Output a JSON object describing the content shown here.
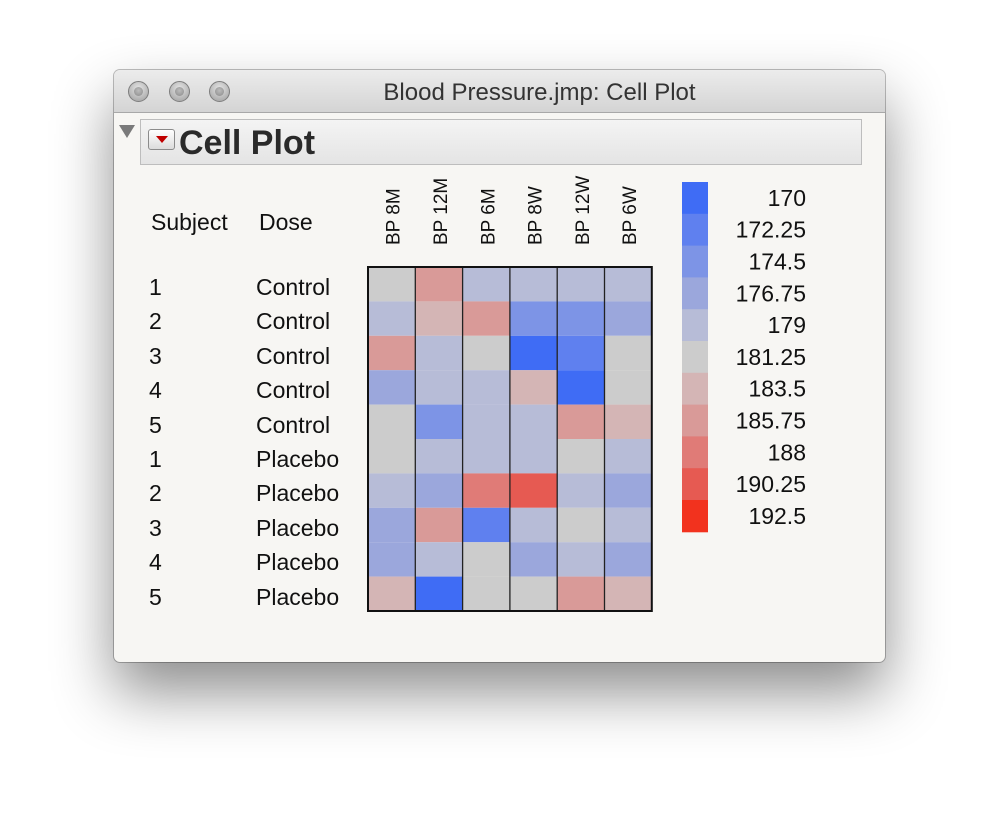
{
  "window": {
    "title": "Blood Pressure.jmp: Cell Plot"
  },
  "outline": {
    "title": "Cell Plot"
  },
  "table": {
    "headers": [
      "Subject",
      "Dose"
    ],
    "rows": [
      {
        "subject": "1",
        "dose": "Control"
      },
      {
        "subject": "2",
        "dose": "Control"
      },
      {
        "subject": "3",
        "dose": "Control"
      },
      {
        "subject": "4",
        "dose": "Control"
      },
      {
        "subject": "5",
        "dose": "Control"
      },
      {
        "subject": "1",
        "dose": "Placebo"
      },
      {
        "subject": "2",
        "dose": "Placebo"
      },
      {
        "subject": "3",
        "dose": "Placebo"
      },
      {
        "subject": "4",
        "dose": "Placebo"
      },
      {
        "subject": "5",
        "dose": "Placebo"
      }
    ]
  },
  "chart_data": {
    "type": "heatmap",
    "columns": [
      "BP 8M",
      "BP 12M",
      "BP 6M",
      "BP 8W",
      "BP 12W",
      "BP 6W"
    ],
    "rows": [
      "1 Control",
      "2 Control",
      "3 Control",
      "4 Control",
      "5 Control",
      "1 Placebo",
      "2 Placebo",
      "3 Placebo",
      "4 Placebo",
      "5 Placebo"
    ],
    "values": [
      [
        181,
        185,
        179,
        178,
        178,
        178
      ],
      [
        179,
        183,
        186,
        175,
        175,
        176
      ],
      [
        186,
        180,
        181,
        171,
        173,
        181
      ],
      [
        176,
        180,
        178,
        184,
        171,
        182
      ],
      [
        181,
        175,
        180,
        180,
        185,
        183
      ],
      [
        181,
        178,
        179,
        179,
        182,
        179
      ],
      [
        179,
        176,
        188,
        190,
        179,
        177
      ],
      [
        177,
        186,
        173,
        180,
        182,
        178
      ],
      [
        176,
        179,
        182,
        177,
        178,
        177
      ],
      [
        183,
        171,
        182,
        181,
        186,
        183
      ]
    ],
    "legend": {
      "labels": [
        "170",
        "172.25",
        "174.5",
        "176.75",
        "179",
        "181.25",
        "183.5",
        "185.75",
        "188",
        "190.25",
        "192.5"
      ],
      "colors": [
        "#3f6cf5",
        "#5f80ef",
        "#7d94e6",
        "#9ba7dc",
        "#b7bcd7",
        "#cccccc",
        "#d4b5b5",
        "#d99a98",
        "#e07b77",
        "#e65a52",
        "#f2321e"
      ]
    },
    "scale": {
      "min": 170,
      "max": 192.5
    }
  }
}
